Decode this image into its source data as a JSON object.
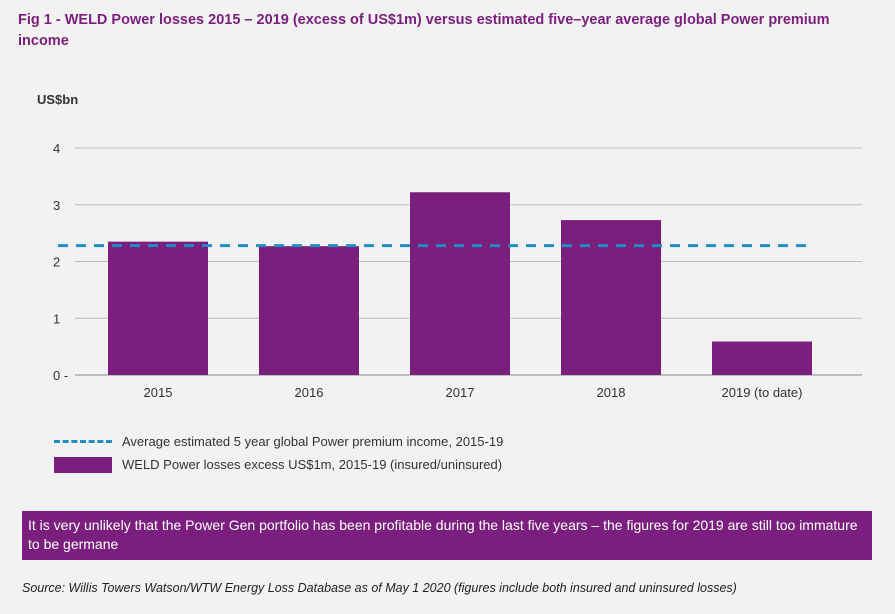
{
  "title": "Fig 1 - WELD Power losses 2015 – 2019 (excess of US$1m) versus estimated five–year average global Power premium income",
  "chart_data": {
    "type": "bar",
    "title": "Fig 1 - WELD Power losses 2015 – 2019 (excess of US$1m) versus estimated five–year average global Power premium income",
    "ylabel": "US$bn",
    "xlabel": "",
    "ylim": [
      0,
      4
    ],
    "yticks": [
      "0 -",
      "1",
      "2",
      "3",
      "4"
    ],
    "grid": true,
    "categories": [
      "2015",
      "2016",
      "2017",
      "2018",
      "2019 (to date)"
    ],
    "series": [
      {
        "name": "WELD Power losses excess US$1m, 2015-19 (insured/uninsured)",
        "type": "bar",
        "color": "#7b1f7e",
        "values": [
          2.35,
          2.27,
          3.22,
          2.73,
          0.59
        ]
      },
      {
        "name": "Average estimated 5 year global Power premium income, 2015-19",
        "type": "reference-line",
        "color": "#1f8dc3",
        "value": 2.28
      }
    ],
    "legend_position": "bottom-left"
  },
  "legend": {
    "line_label": "Average estimated 5 year global Power premium income, 2015-19",
    "bar_label": "WELD Power losses excess US$1m, 2015-19 (insured/uninsured)"
  },
  "callout": "It is very unlikely that the Power Gen portfolio has been profitable during the last five years – the figures for 2019 are still too immature to be germane",
  "source": "Source:  Willis Towers Watson/WTW Energy Loss Database as of May 1 2020 (figures include both insured and uninsured losses)"
}
